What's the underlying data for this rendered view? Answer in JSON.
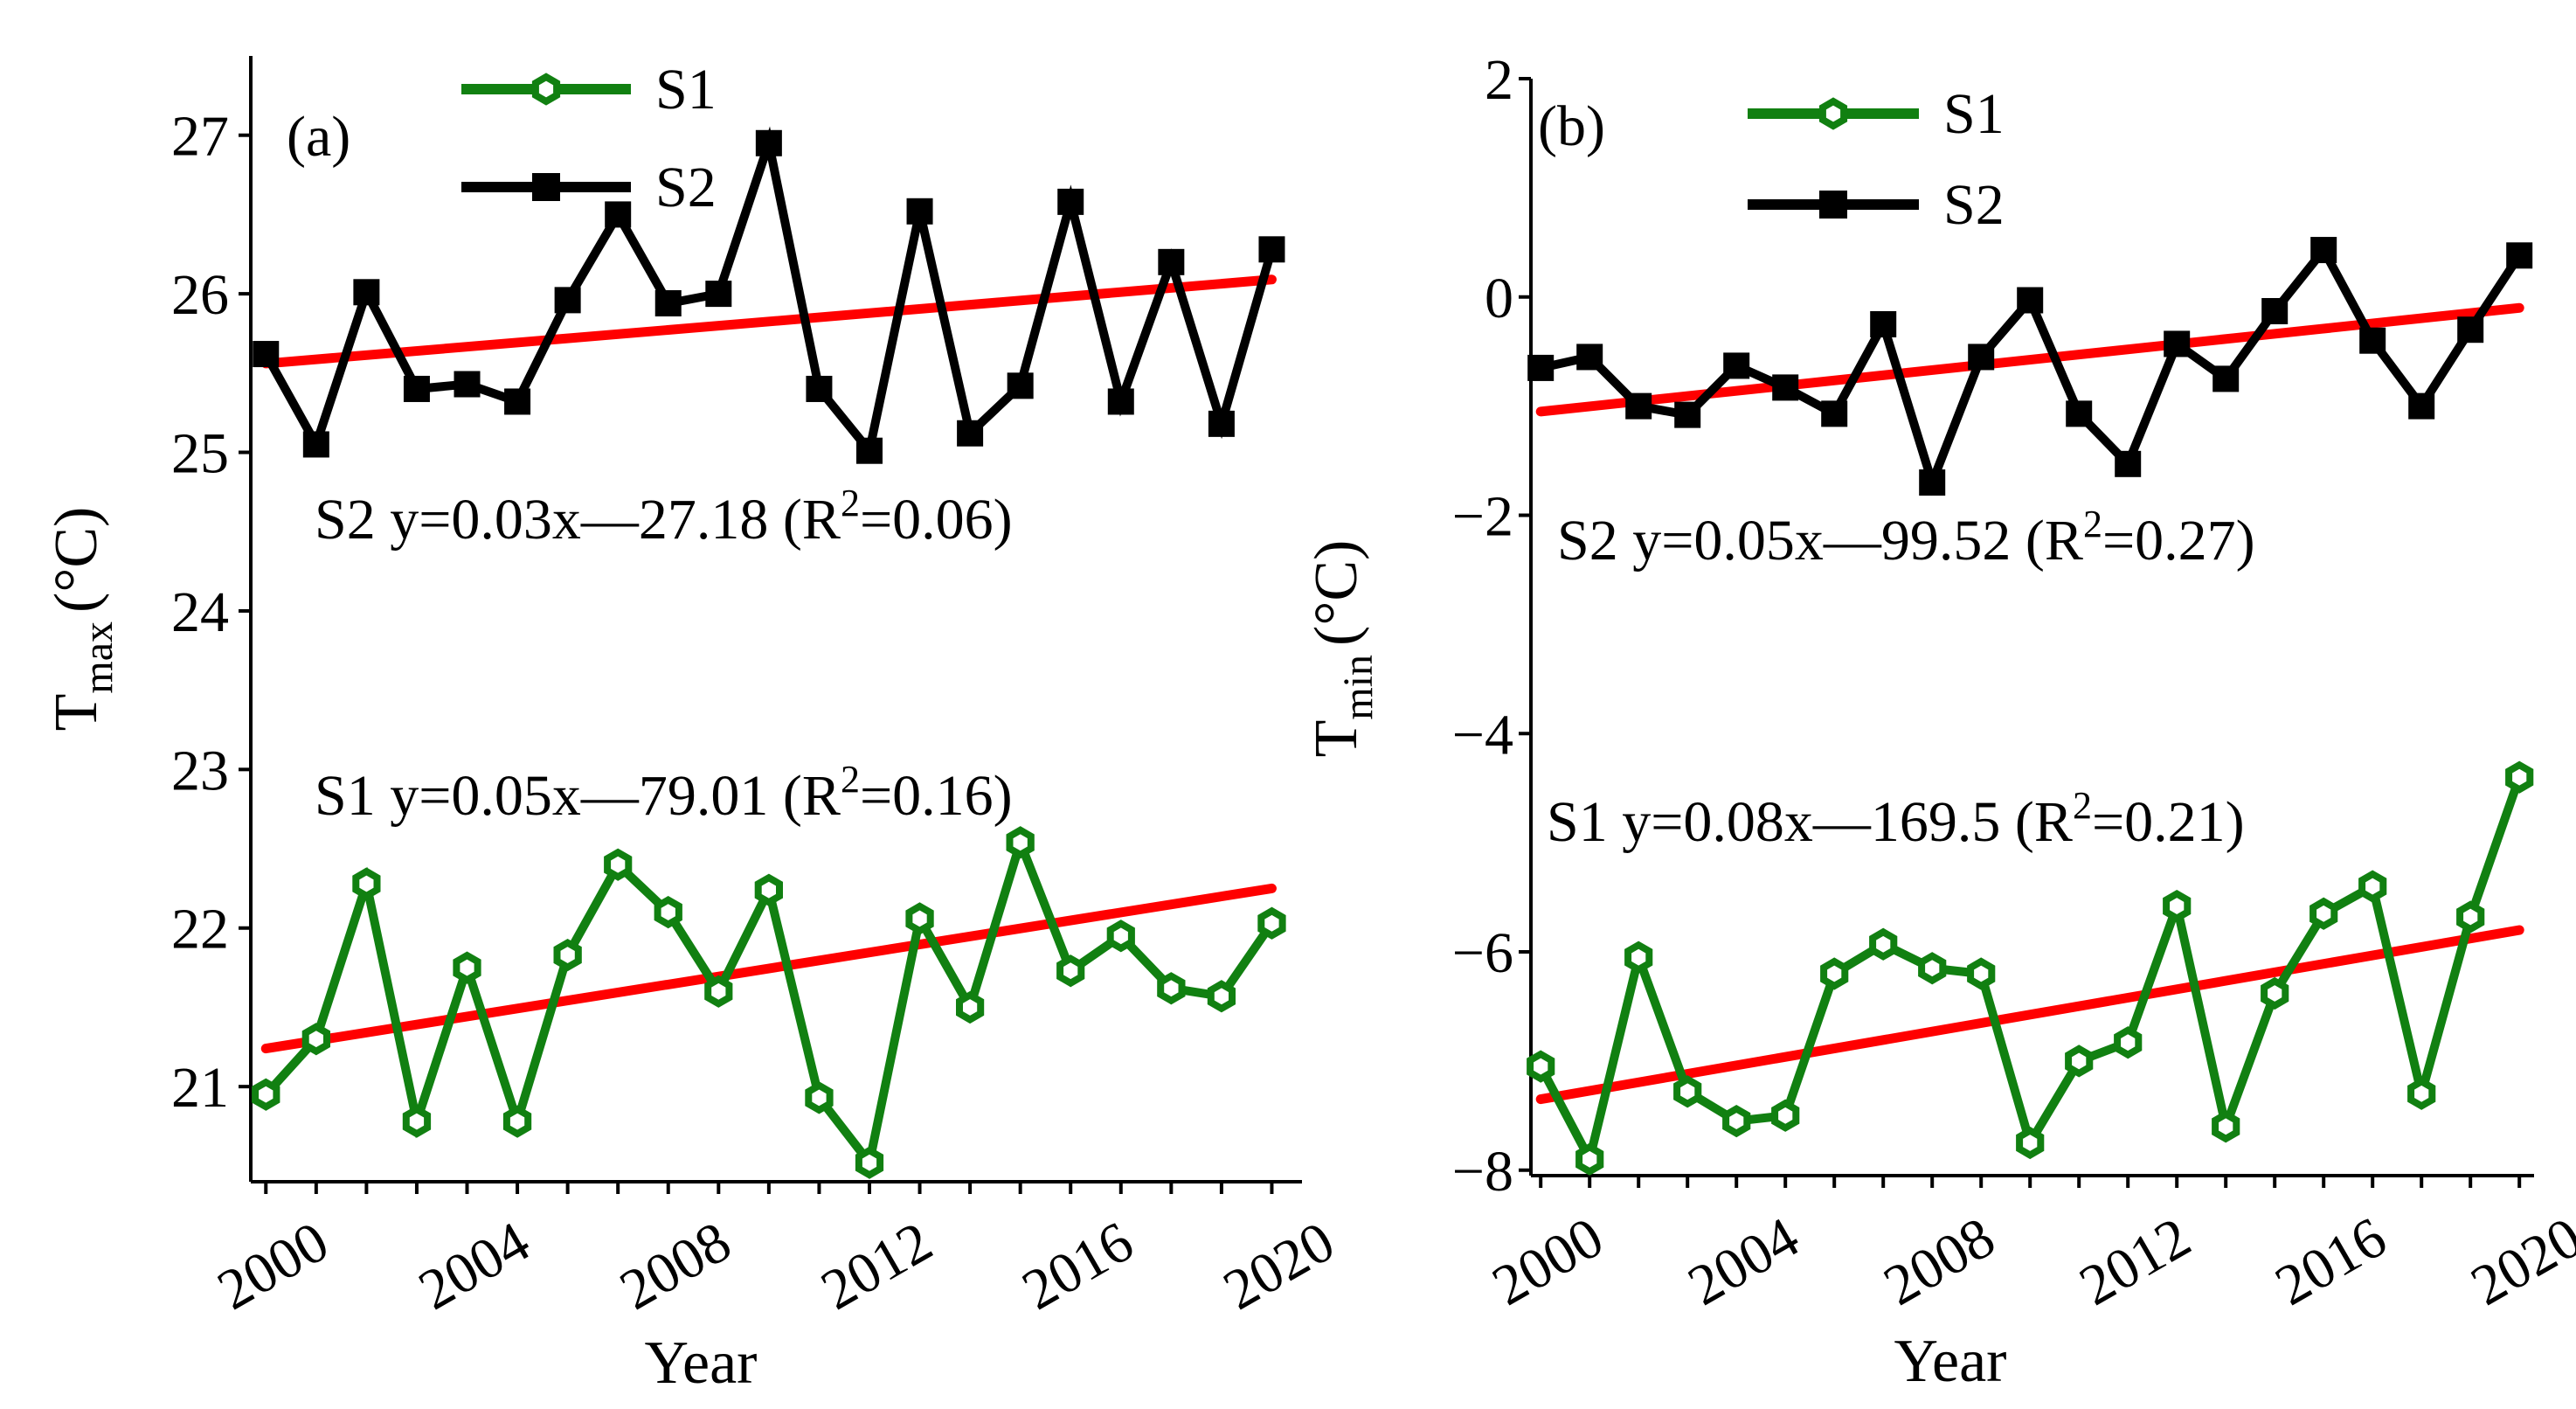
{
  "chart_data": [
    {
      "panel": "(a)",
      "type": "line",
      "xlabel": "Year",
      "ylabel_main": "T",
      "ylabel_sub": "max",
      "ylabel_unit": "(°C)",
      "x_ticks": [
        "2000",
        "2004",
        "2008",
        "2012",
        "2016",
        "2020"
      ],
      "y_ticks": [
        "21",
        "22",
        "23",
        "24",
        "25",
        "26",
        "27"
      ],
      "xlim": [
        1999.7,
        2020.6
      ],
      "ylim": [
        20.4,
        27.5
      ],
      "x": [
        2000,
        2001,
        2002,
        2003,
        2004,
        2005,
        2006,
        2007,
        2008,
        2009,
        2010,
        2011,
        2012,
        2013,
        2014,
        2015,
        2016,
        2017,
        2018,
        2019,
        2020
      ],
      "series": [
        {
          "name": "S1",
          "color": "#118011",
          "marker": "hexagon-open",
          "values": [
            20.95,
            21.3,
            22.28,
            20.78,
            21.75,
            20.78,
            21.83,
            22.4,
            22.1,
            21.6,
            22.24,
            20.93,
            20.52,
            22.06,
            21.5,
            22.54,
            21.73,
            21.95,
            21.62,
            21.57,
            22.03
          ]
        },
        {
          "name": "S2",
          "color": "#000000",
          "marker": "square-filled",
          "values": [
            25.62,
            25.05,
            26.01,
            25.4,
            25.43,
            25.32,
            25.96,
            26.5,
            25.94,
            26.0,
            26.95,
            25.4,
            25.01,
            26.52,
            25.12,
            25.42,
            26.58,
            25.32,
            26.2,
            25.18,
            26.28
          ]
        }
      ],
      "trend_lines": [
        {
          "name": "S1 trend",
          "color": "#ff0000",
          "x": [
            2000,
            2020
          ],
          "y": [
            21.24,
            22.25
          ]
        },
        {
          "name": "S2 trend",
          "color": "#ff0000",
          "x": [
            2000,
            2020
          ],
          "y": [
            25.56,
            26.09
          ]
        }
      ],
      "equations": {
        "s2": {
          "prefix": "S2  y=0.03x—27.18 (R",
          "sup": "2",
          "suffix": "=0.06)"
        },
        "s1": {
          "prefix": "S1  y=0.05x—79.01 (R",
          "sup": "2",
          "suffix": "=0.16)"
        }
      },
      "legend": [
        "S1",
        "S2"
      ]
    },
    {
      "panel": "(b)",
      "type": "line",
      "xlabel": "Year",
      "ylabel_main": "T",
      "ylabel_sub": "min",
      "ylabel_unit": "(°C)",
      "x_ticks": [
        "2000",
        "2004",
        "2008",
        "2012",
        "2016",
        "2020"
      ],
      "y_ticks": [
        "−8",
        "−6",
        "−4",
        "−2",
        "0",
        "2"
      ],
      "xlim": [
        1999.8,
        2020.3
      ],
      "ylim": [
        -8.05,
        2.0
      ],
      "x": [
        2000,
        2001,
        2002,
        2003,
        2004,
        2005,
        2006,
        2007,
        2008,
        2009,
        2010,
        2011,
        2012,
        2013,
        2014,
        2015,
        2016,
        2017,
        2018,
        2019,
        2020
      ],
      "series": [
        {
          "name": "S1",
          "color": "#118011",
          "marker": "hexagon-open",
          "values": [
            -7.05,
            -7.9,
            -6.05,
            -7.28,
            -7.55,
            -7.5,
            -6.2,
            -5.93,
            -6.15,
            -6.2,
            -7.75,
            -7.0,
            -6.83,
            -5.58,
            -7.6,
            -6.38,
            -5.65,
            -5.4,
            -7.3,
            -5.68,
            -4.4
          ]
        },
        {
          "name": "S2",
          "color": "#000000",
          "marker": "square-filled",
          "values": [
            -0.65,
            -0.55,
            -1.0,
            -1.08,
            -0.63,
            -0.83,
            -1.07,
            -0.25,
            -1.7,
            -0.55,
            -0.03,
            -1.07,
            -1.53,
            -0.43,
            -0.75,
            -0.13,
            0.43,
            -0.4,
            -1.0,
            -0.3,
            0.38
          ]
        }
      ],
      "trend_lines": [
        {
          "name": "S1 trend",
          "color": "#ff0000",
          "x": [
            2000,
            2020
          ],
          "y": [
            -7.35,
            -5.8
          ]
        },
        {
          "name": "S2 trend",
          "color": "#ff0000",
          "x": [
            2000,
            2020
          ],
          "y": [
            -1.05,
            -0.1
          ]
        }
      ],
      "equations": {
        "s2": {
          "prefix": "S2  y=0.05x—99.52  (R",
          "sup": "2",
          "suffix": "=0.27)"
        },
        "s1": {
          "prefix": "S1  y=0.08x—169.5  (R",
          "sup": "2",
          "suffix": "=0.21)"
        }
      },
      "legend": [
        "S1",
        "S2"
      ]
    }
  ]
}
